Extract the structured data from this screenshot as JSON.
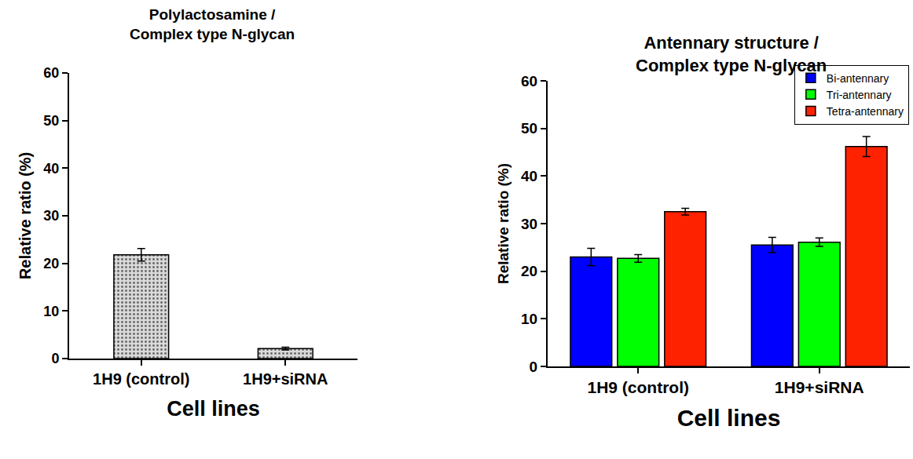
{
  "chart_data": [
    {
      "type": "bar",
      "title": "Polylactosamine /\nComplex type N-glycan",
      "x_label": "Cell lines",
      "y_label": "Relative ratio (%)",
      "categories": [
        "1H9 (control)",
        "1H9+siRNA"
      ],
      "values": [
        21.8,
        2.1
      ],
      "errors": [
        1.3,
        0.3
      ],
      "color": "#d9d9d9",
      "ylim": [
        0,
        60
      ],
      "yticks": [
        0,
        10,
        20,
        30,
        40,
        50,
        60
      ],
      "grid": false
    },
    {
      "type": "bar",
      "title": "Antennary structure /\nComplex type N-glycan",
      "x_label": "Cell lines",
      "y_label": "Relative ratio (%)",
      "categories": [
        "1H9 (control)",
        "1H9+siRNA"
      ],
      "series": [
        {
          "name": "Bi-antennary",
          "color": "#0000ff",
          "values": [
            23.0,
            25.5
          ],
          "errors": [
            1.8,
            1.6
          ]
        },
        {
          "name": "Tri-antennary",
          "color": "#00ff00",
          "values": [
            22.7,
            26.1
          ],
          "errors": [
            0.8,
            0.9
          ]
        },
        {
          "name": "Tetra-antennary",
          "color": "#ff2200",
          "values": [
            32.5,
            46.2
          ],
          "errors": [
            0.7,
            2.1
          ]
        }
      ],
      "legend": "top right",
      "ylim": [
        0,
        60
      ],
      "yticks": [
        0,
        10,
        20,
        30,
        40,
        50,
        60
      ],
      "grid": false
    }
  ]
}
